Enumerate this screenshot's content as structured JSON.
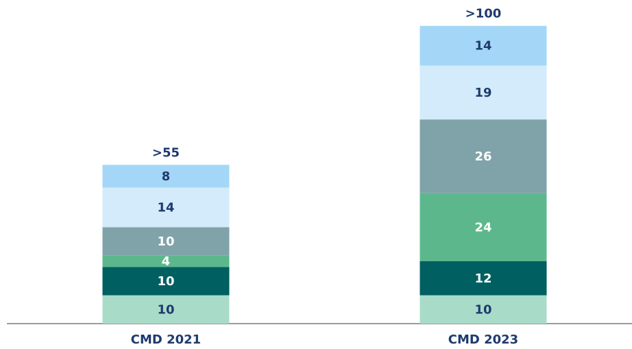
{
  "chart_data": {
    "type": "stacked_bar",
    "categories": [
      "CMD 2021",
      "CMD 2023"
    ],
    "total_labels": [
      ">55",
      ">100"
    ],
    "series": [
      {
        "color": "#a8dcc8",
        "label_color": "#1e3a6e",
        "values": [
          10,
          10
        ]
      },
      {
        "color": "#005f61",
        "label_color": "#ffffff",
        "values": [
          10,
          12
        ]
      },
      {
        "color": "#5cb88c",
        "label_color": "#ffffff",
        "values": [
          4,
          24
        ]
      },
      {
        "color": "#7fa3a8",
        "label_color": "#ffffff",
        "values": [
          10,
          26
        ]
      },
      {
        "color": "#d3ebfa",
        "label_color": "#1e3a6e",
        "values": [
          14,
          19
        ]
      },
      {
        "color": "#a4d7f7",
        "label_color": "#1e3a6e",
        "values": [
          8,
          14
        ]
      }
    ],
    "ylim": [
      0,
      110
    ]
  }
}
